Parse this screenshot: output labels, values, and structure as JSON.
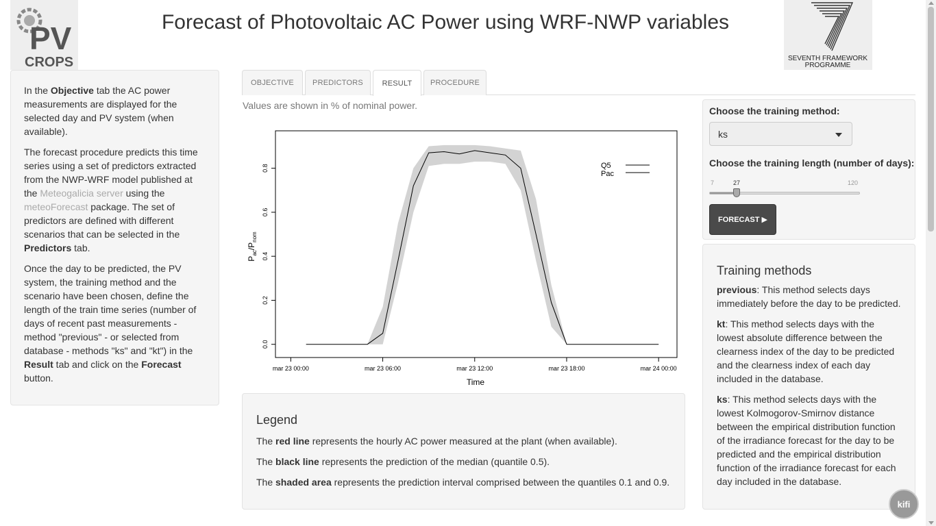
{
  "header": {
    "title": "Forecast of Photovoltaic AC Power using WRF-NWP variables",
    "logo_left_text": "CROPS",
    "logo_left_mark": "PV",
    "logo_right_text1": "SEVENTH FRAMEWORK",
    "logo_right_text2": "PROGRAMME"
  },
  "sidebar": {
    "p1": [
      "In the ",
      "Objective",
      " tab the AC power measurements are displayed for the selected day and PV system (when available)."
    ],
    "p2": [
      "The forecast procedure predicts this time series using a set of predictors extracted from the NWP-WRF model published at the ",
      "Meteogalicia server",
      " using the ",
      "meteoForecast",
      " package. The set of predictors are defined with different scenarios that can be selected in the ",
      "Predictors",
      " tab."
    ],
    "p3": [
      "Once the day to be predicted, the PV system, the training method and the scenario have been chosen, define the length of the train time series (number of days of recent past measurements - method \"previous\" - or selected from database - methods \"ks\" and \"kt\") in the ",
      "Result",
      " tab and click on the ",
      "Forecast",
      " button."
    ]
  },
  "tabs": [
    {
      "label": "Objective",
      "active": false
    },
    {
      "label": "Predictors",
      "active": false
    },
    {
      "label": "Result",
      "active": true
    },
    {
      "label": "Procedure",
      "active": false
    }
  ],
  "values_note": "Values are shown in % of nominal power.",
  "chart_data": {
    "type": "line",
    "xlabel": "Time",
    "ylabel_main": "P",
    "ylabel_sub1": "ac",
    "ylabel_sep": "/P",
    "ylabel_sub2": "nom",
    "x_ticks": [
      "mar 23 00:00",
      "mar 23 06:00",
      "mar 23 12:00",
      "mar 23 18:00",
      "mar 24 00:00"
    ],
    "x_range_hours": [
      -1,
      25.2
    ],
    "y_ticks": [
      "0.0",
      "0.2",
      "0.4",
      "0.6",
      "0.8"
    ],
    "y_tick_values": [
      0.0,
      0.2,
      0.4,
      0.6,
      0.8
    ],
    "ylim": [
      -0.06,
      0.97
    ],
    "grid": false,
    "legend_position": "top-right",
    "legend": [
      {
        "name": "Q5",
        "color": "#000000"
      },
      {
        "name": "Pac",
        "color": "#000000"
      }
    ],
    "x_hours": [
      1,
      2,
      3,
      4,
      5,
      6,
      7,
      8,
      9,
      10,
      11,
      12,
      13,
      14,
      15,
      16,
      17,
      18,
      19,
      20,
      21,
      22,
      23,
      24
    ],
    "median": [
      0,
      0,
      0,
      0,
      0,
      0.05,
      0.38,
      0.72,
      0.87,
      0.875,
      0.865,
      0.88,
      0.87,
      0.86,
      0.8,
      0.5,
      0.19,
      0,
      0,
      0,
      0,
      0,
      0,
      0
    ],
    "q_low": [
      0,
      0,
      0,
      0,
      0,
      0.0,
      0.28,
      0.6,
      0.81,
      0.82,
      0.82,
      0.83,
      0.83,
      0.82,
      0.7,
      0.38,
      0.08,
      0,
      0,
      0,
      0,
      0,
      0,
      0
    ],
    "q_high": [
      0,
      0,
      0,
      0,
      0,
      0.17,
      0.55,
      0.8,
      0.9,
      0.905,
      0.905,
      0.905,
      0.9,
      0.89,
      0.88,
      0.66,
      0.27,
      0,
      0,
      0,
      0,
      0,
      0,
      0
    ]
  },
  "legend_panel": {
    "title": "Legend",
    "line1": [
      "The ",
      "red line",
      " represents the hourly AC power measured at the plant (when available)."
    ],
    "line2": [
      "The ",
      "black line",
      " represents the prediction of the median (quantile 0.5)."
    ],
    "line3": [
      "The ",
      "shaded area",
      " represents the prediction interval comprised between the quantiles 0.1 and 0.9."
    ]
  },
  "controls": {
    "method_label": "Choose the training method:",
    "method_value": "ks",
    "length_label": "Choose the training length (number of days):",
    "slider_min": "7",
    "slider_max": "120",
    "slider_value": "27",
    "slider_fraction": 0.177,
    "forecast_label": "Forecast ▶"
  },
  "methods": {
    "title": "Training methods",
    "previous": [
      "previous",
      ": This method selects days immediately before the day to be predicted."
    ],
    "kt": [
      "kt",
      ": This method selects days with the lowest absolute difference between the clearness index of the day to be predicted and the clearness index of each day included in the database."
    ],
    "ks": [
      "ks",
      ": This method selects days with the lowest Kolmogorov-Smirnov distance between the empirical distribution function of the irradiance forecast for the day to be predicted and the empirical distribution function of the irradiance forecast for each day included in the database."
    ]
  },
  "kifi": "kifi"
}
